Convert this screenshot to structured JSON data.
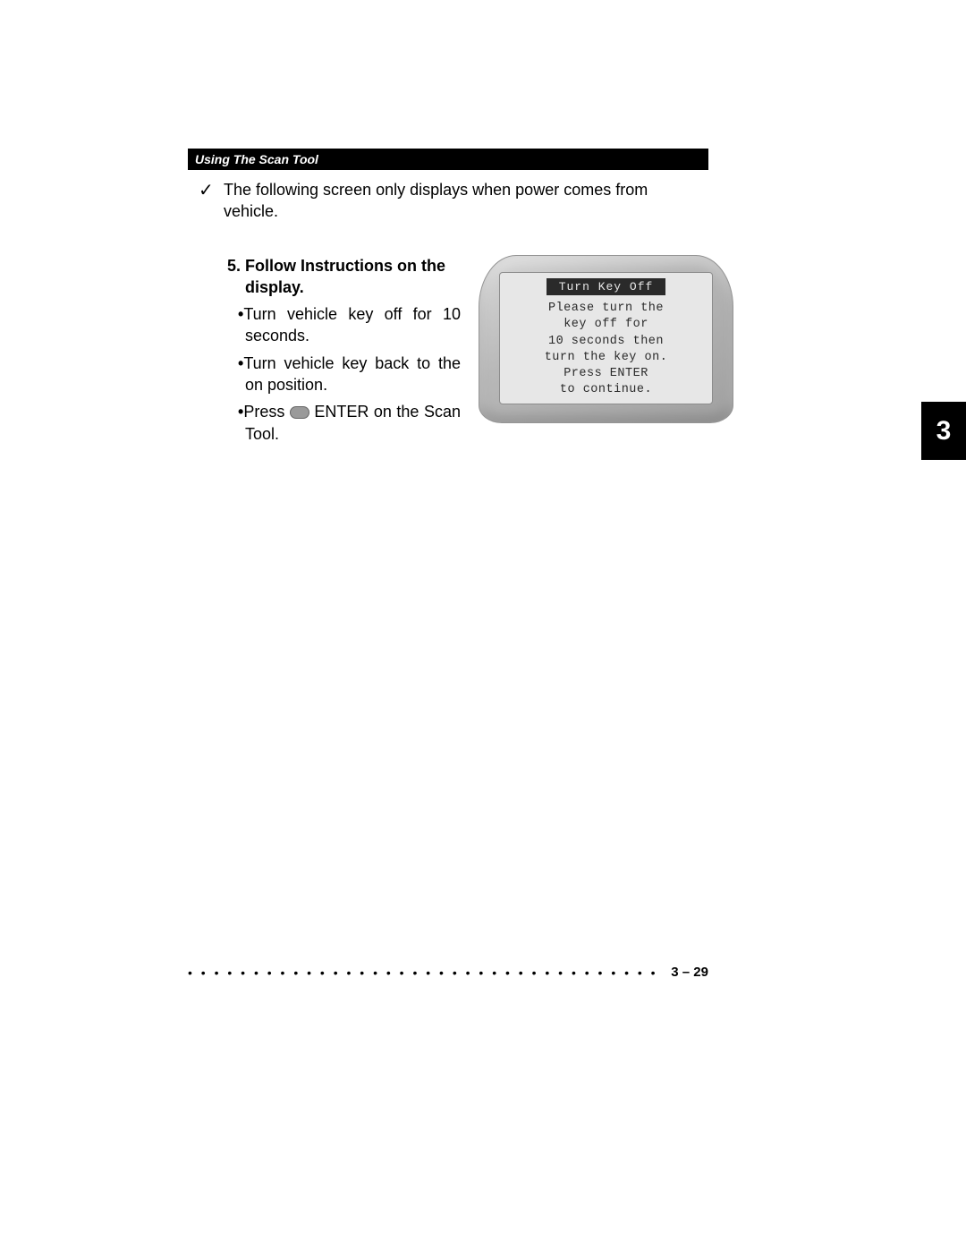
{
  "header": {
    "title": "Using The Scan Tool"
  },
  "note": {
    "checkmark": "✓",
    "text": "The following screen only displays when power comes from vehicle."
  },
  "step": {
    "number": "5.",
    "heading": "Follow Instructions on the display.",
    "bullets": [
      "Turn vehicle key off for 10 seconds.",
      "Turn vehicle key back to the on position."
    ],
    "press_prefix": "Press",
    "press_suffix": " ENTER on the Scan Tool."
  },
  "screen": {
    "title": "Turn Key Off",
    "lines": [
      "Please turn the",
      "key off for",
      "10 seconds then",
      "turn the key on.",
      "Press ENTER",
      "to continue."
    ]
  },
  "tab": {
    "label": "3"
  },
  "footer": {
    "page": "3 – 29"
  }
}
